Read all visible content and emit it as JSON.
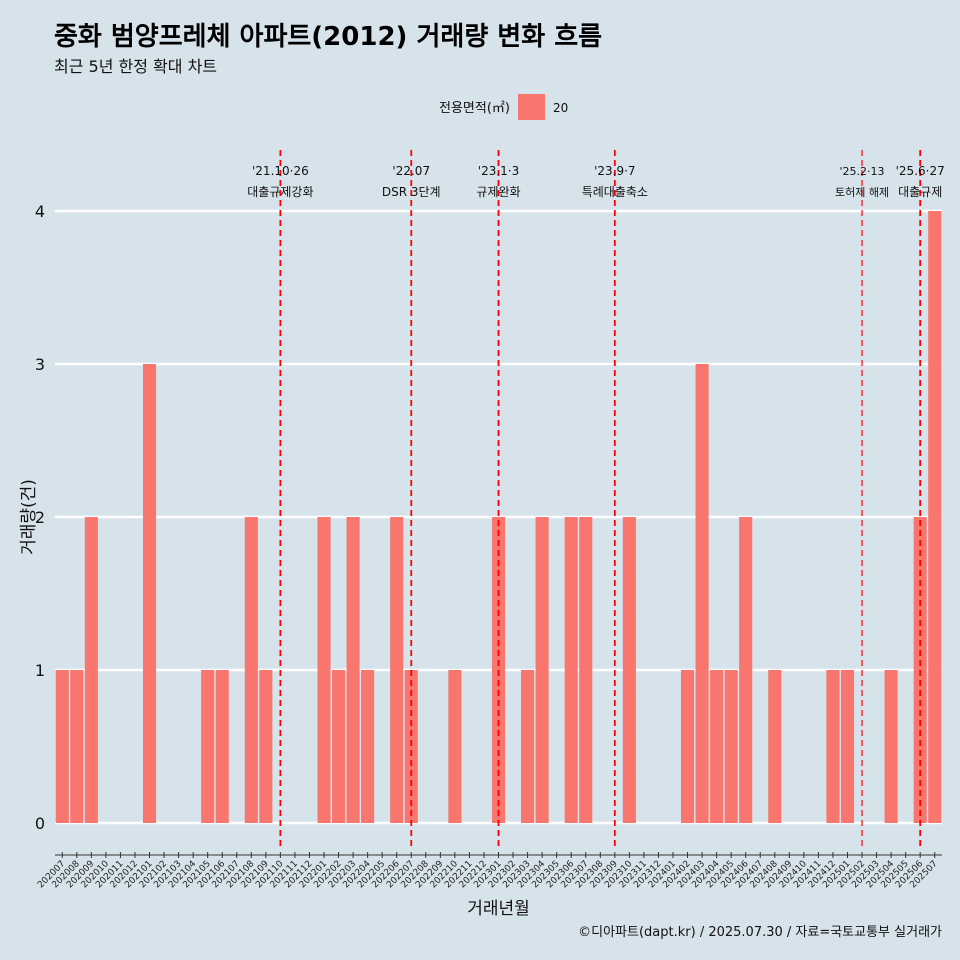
{
  "chart_data": {
    "type": "bar",
    "title": "중화 범양프레체 아파트(2012) 거래량 변화 흐름",
    "subtitle": "최근 5년 한정 확대 차트",
    "xlabel": "거래년월",
    "ylabel": "거래량(건)",
    "ylim": [
      0,
      4
    ],
    "yticks": [
      0,
      1,
      2,
      3,
      4
    ],
    "grid": true,
    "legend": {
      "title": "전용면적(㎡)",
      "position": "top",
      "items": [
        {
          "label": "20",
          "color": "#f8766d"
        }
      ]
    },
    "categories": [
      "202007",
      "202008",
      "202009",
      "202010",
      "202011",
      "202012",
      "202101",
      "202102",
      "202103",
      "202104",
      "202105",
      "202106",
      "202107",
      "202108",
      "202109",
      "202110",
      "202111",
      "202112",
      "202201",
      "202202",
      "202203",
      "202204",
      "202205",
      "202206",
      "202207",
      "202208",
      "202209",
      "202210",
      "202211",
      "202212",
      "202301",
      "202302",
      "202303",
      "202304",
      "202305",
      "202306",
      "202307",
      "202308",
      "202309",
      "202310",
      "202311",
      "202312",
      "202401",
      "202402",
      "202403",
      "202404",
      "202405",
      "202406",
      "202407",
      "202408",
      "202409",
      "202410",
      "202411",
      "202412",
      "202501",
      "202502",
      "202503",
      "202504",
      "202505",
      "202506",
      "202507"
    ],
    "series": [
      {
        "name": "20",
        "color": "#f8766d",
        "values": [
          1,
          1,
          2,
          0,
          0,
          0,
          3,
          0,
          0,
          0,
          1,
          1,
          0,
          2,
          1,
          0,
          0,
          0,
          2,
          1,
          2,
          1,
          0,
          2,
          1,
          0,
          0,
          1,
          0,
          0,
          2,
          0,
          1,
          2,
          0,
          2,
          2,
          0,
          0,
          2,
          0,
          0,
          0,
          1,
          3,
          1,
          1,
          2,
          0,
          1,
          0,
          0,
          0,
          1,
          1,
          0,
          0,
          1,
          0,
          2,
          4
        ]
      }
    ],
    "annotations": [
      {
        "x": "202110",
        "date": "'21.10·26",
        "label": "대출규제강화"
      },
      {
        "x": "202207",
        "date": "'22.07",
        "label": "DSR 3단계"
      },
      {
        "x": "202301",
        "date": "'23.1·3",
        "label": "규제완화"
      },
      {
        "x": "202309",
        "date": "'23.9·7",
        "label": "특례대출축소"
      },
      {
        "x": "202502",
        "date": "'25.2·13",
        "label": "토허제 해제"
      },
      {
        "x": "202506",
        "date": "'25.6·27",
        "label": "대출규제"
      }
    ]
  },
  "caption": "©디아파트(dapt.kr) / 2025.07.30 / 자료=국토교통부 실거래가"
}
